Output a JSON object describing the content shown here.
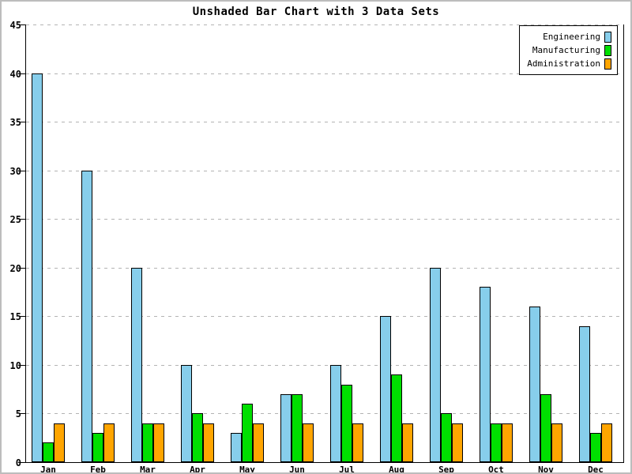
{
  "title": "Unshaded Bar Chart with 3 Data Sets",
  "colors": {
    "engineering": "#87CEEB",
    "manufacturing": "#00DF00",
    "administration": "#FFA500",
    "grid": "#b3b3b3",
    "axis": "#000000",
    "outer_border": "#bdbdbd"
  },
  "legend": {
    "position": "top-right",
    "entries": [
      {
        "label": "Engineering",
        "color": "#87CEEB"
      },
      {
        "label": "Manufacturing",
        "color": "#00DF00"
      },
      {
        "label": "Administration",
        "color": "#FFA500"
      }
    ]
  },
  "chart_data": {
    "type": "bar",
    "title": "Unshaded Bar Chart with 3 Data Sets",
    "categories": [
      "Jan",
      "Feb",
      "Mar",
      "Apr",
      "May",
      "Jun",
      "Jul",
      "Aug",
      "Sep",
      "Oct",
      "Nov",
      "Dec"
    ],
    "series": [
      {
        "name": "Engineering",
        "color": "#87CEEB",
        "values": [
          40,
          30,
          20,
          10,
          3,
          7,
          10,
          15,
          20,
          18,
          16,
          14
        ]
      },
      {
        "name": "Manufacturing",
        "color": "#00DF00",
        "values": [
          2,
          3,
          4,
          5,
          6,
          7,
          8,
          9,
          5,
          4,
          7,
          3
        ]
      },
      {
        "name": "Administration",
        "color": "#FFA500",
        "values": [
          4,
          4,
          4,
          4,
          4,
          4,
          4,
          4,
          4,
          4,
          4,
          4
        ]
      }
    ],
    "xlabel": "",
    "ylabel": "",
    "ylim": [
      0,
      45
    ],
    "ytick_step": 5,
    "yticks": [
      0,
      5,
      10,
      15,
      20,
      25,
      30,
      35,
      40,
      45
    ],
    "ytick_labels": [
      "0",
      "5",
      "10",
      "15",
      "20",
      "25",
      "30",
      "35",
      "40",
      "45"
    ],
    "grid": true,
    "grid_style": "dashed",
    "legend_position": "top-right"
  }
}
